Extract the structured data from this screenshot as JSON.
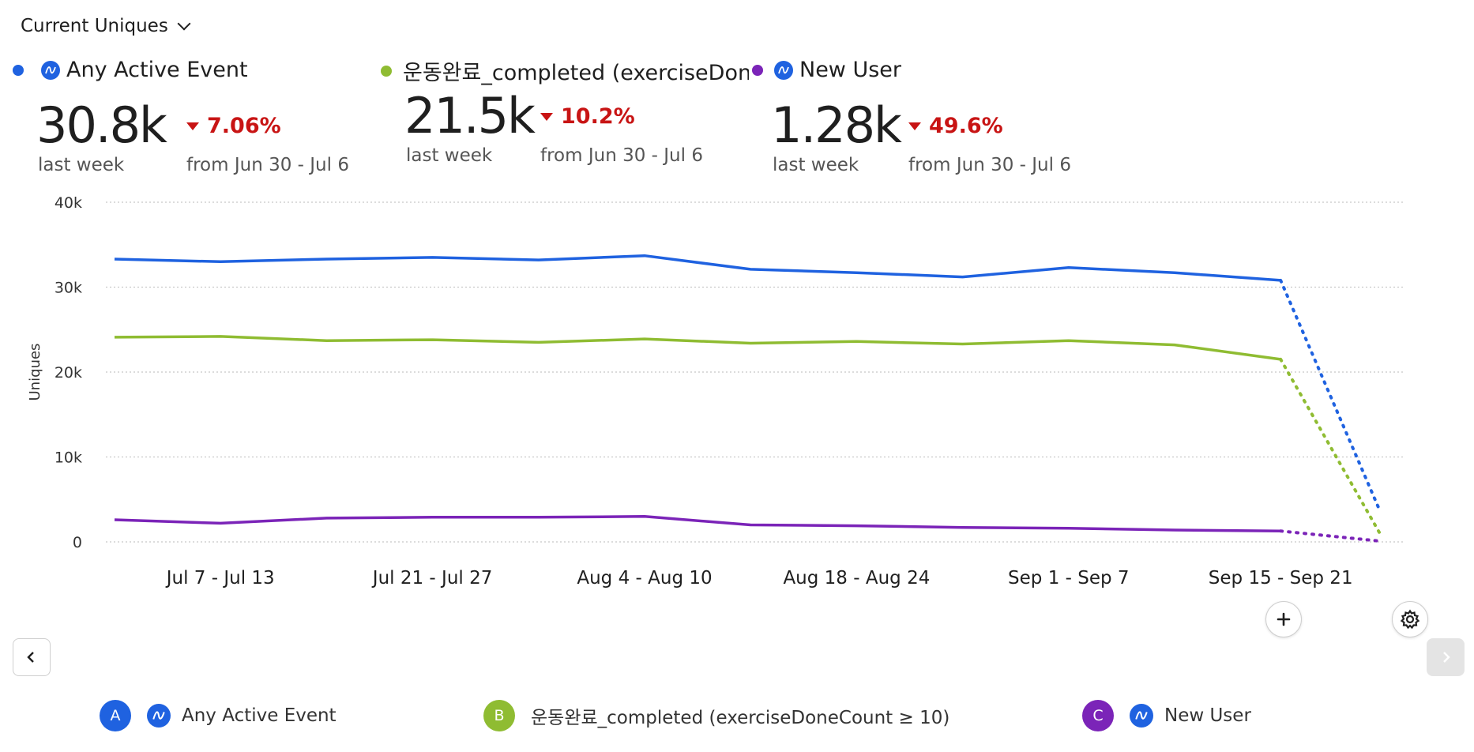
{
  "header": {
    "metric_label": "Current Uniques"
  },
  "events": [
    {
      "letter": "A",
      "name": "Any Active Event",
      "value": "30.8k",
      "period": "last week",
      "change": "7.06%",
      "compare": "from Jun 30 - Jul 6",
      "color": "#1f62e0"
    },
    {
      "letter": "B",
      "name": "운동완료_completed (exerciseDoneCount ≥ 10)",
      "header_name": "운동완료_completed (exerciseDoneCount ≥ ...",
      "value": "21.5k",
      "period": "last week",
      "change": "10.2%",
      "compare": "from Jun 30 - Jul 6",
      "color": "#8fbc32"
    },
    {
      "letter": "C",
      "name": "New User",
      "value": "1.28k",
      "period": "last week",
      "change": "49.6%",
      "compare": "from Jun 30 - Jul 6",
      "color": "#7b24b8"
    }
  ],
  "chart_data": {
    "type": "line",
    "ylabel": "Uniques",
    "ylim": [
      0,
      40000
    ],
    "yticks": [
      "0",
      "10k",
      "20k",
      "30k",
      "40k"
    ],
    "xtick_labels": [
      "Jul 7 - Jul 13",
      "Jul 21 - Jul 27",
      "Aug 4 - Aug 10",
      "Aug 18 - Aug 24",
      "Sep 1 - Sep 7",
      "Sep 15 - Sep 21"
    ],
    "grid": true,
    "series": [
      {
        "name": "Any Active Event",
        "color": "#1f62e0",
        "values": [
          33300,
          33000,
          33300,
          33500,
          33200,
          33700,
          32100,
          31700,
          31200,
          32300,
          31700,
          30800
        ],
        "partial_value": 3800
      },
      {
        "name": "운동완료_completed (exerciseDoneCount ≥ 10)",
        "color": "#8fbc32",
        "values": [
          24100,
          24200,
          23700,
          23800,
          23500,
          23900,
          23400,
          23600,
          23300,
          23700,
          23200,
          21500
        ],
        "partial_value": 1100
      },
      {
        "name": "New User",
        "color": "#7b24b8",
        "values": [
          2600,
          2200,
          2800,
          2900,
          2900,
          3000,
          2000,
          1900,
          1700,
          1600,
          1400,
          1280
        ],
        "partial_value": 100
      }
    ]
  }
}
